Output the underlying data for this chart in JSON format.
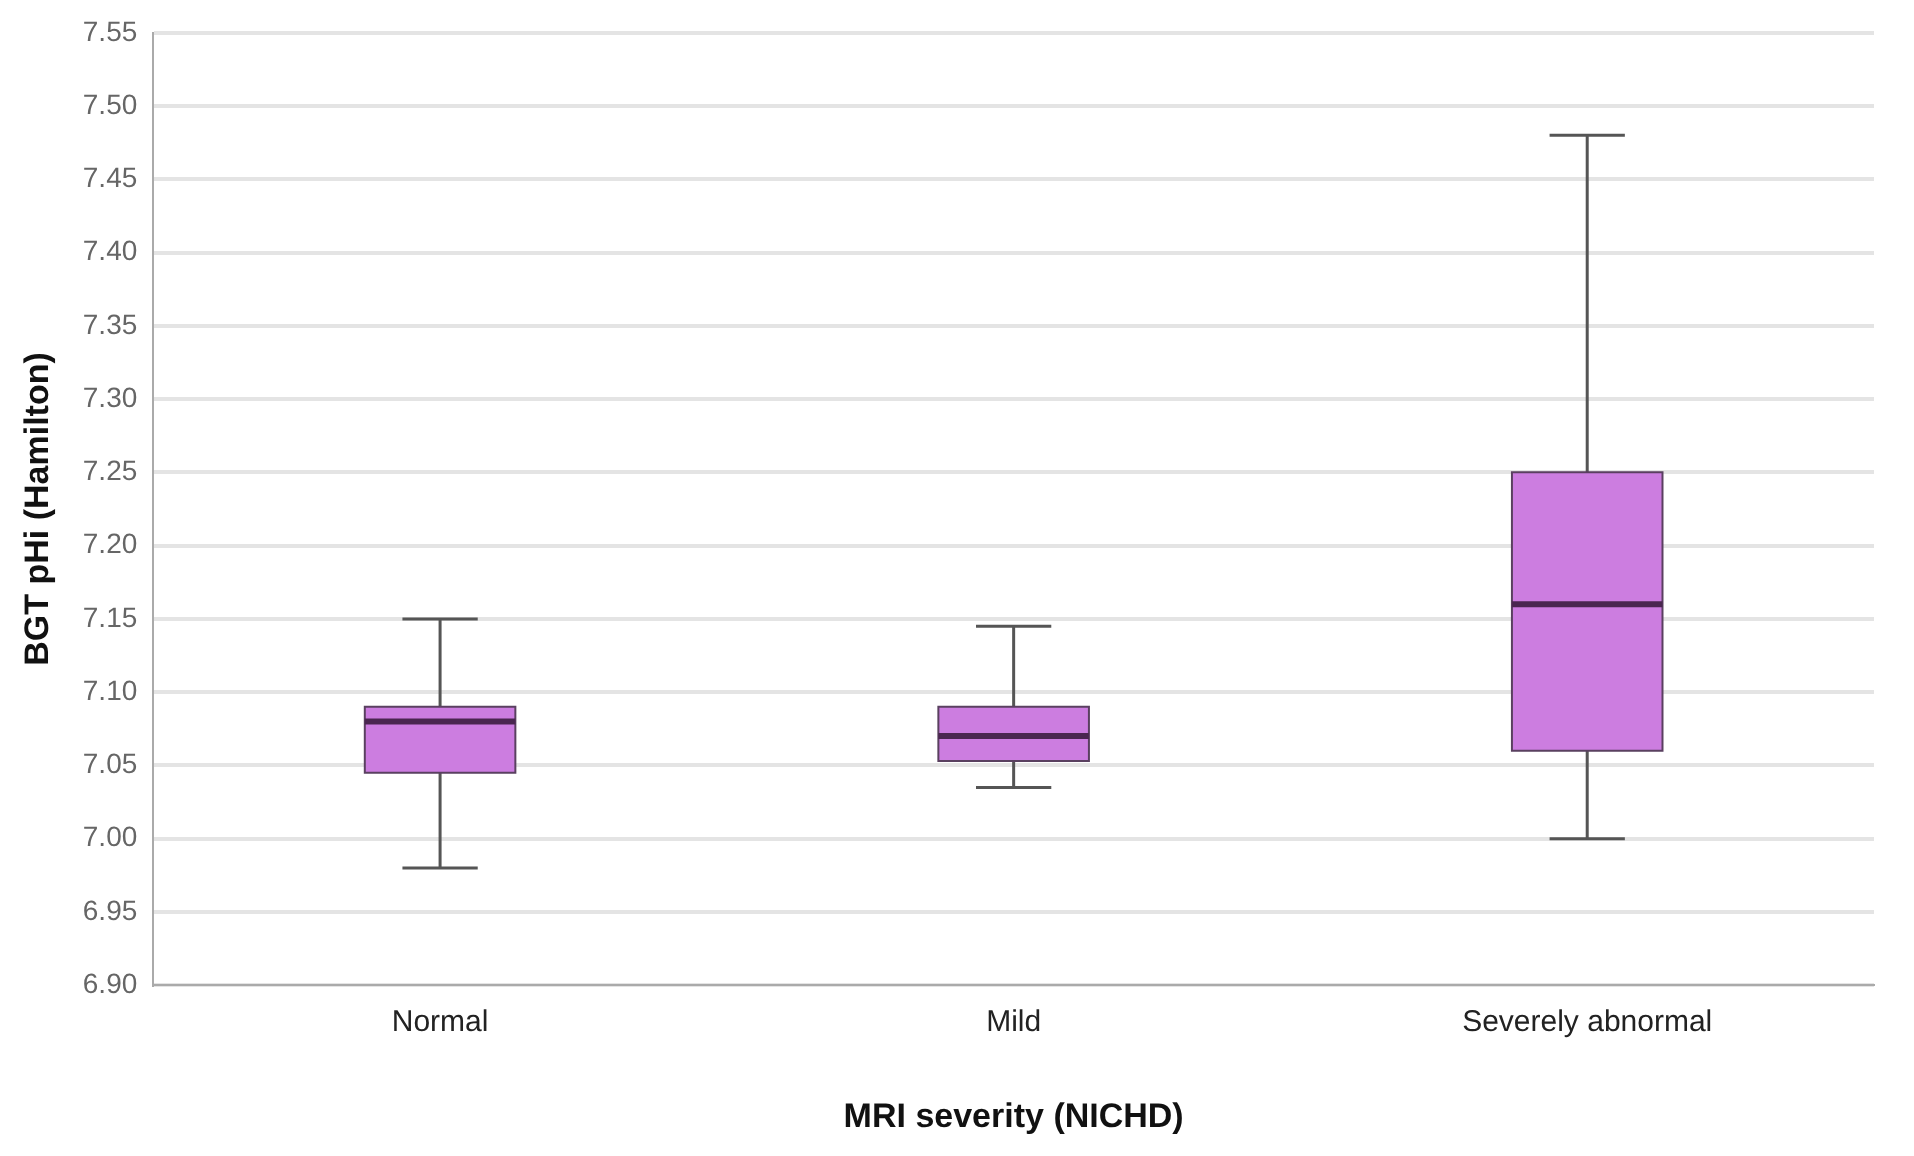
{
  "chart_data": {
    "type": "box",
    "xlabel": "MRI severity (NICHD)",
    "ylabel": "BGT pHi (Hamilton)",
    "categories": [
      "Normal",
      "Mild",
      "Severely abnormal"
    ],
    "color": "#cc7de0",
    "boxes": [
      {
        "low": 6.98,
        "q1": 7.045,
        "median": 7.08,
        "q3": 7.09,
        "high": 7.15
      },
      {
        "low": 7.035,
        "q1": 7.053,
        "median": 7.07,
        "q3": 7.09,
        "high": 7.145
      },
      {
        "low": 7.0,
        "q1": 7.06,
        "median": 7.16,
        "q3": 7.25,
        "high": 7.48
      }
    ],
    "ylim": [
      6.9,
      7.55
    ],
    "yticks": [
      {
        "value": 6.9,
        "label": "6.90"
      },
      {
        "value": 6.95,
        "label": "6.95"
      },
      {
        "value": 7.0,
        "label": "7.00"
      },
      {
        "value": 7.05,
        "label": "7.05"
      },
      {
        "value": 7.1,
        "label": "7.10"
      },
      {
        "value": 7.15,
        "label": "7.15"
      },
      {
        "value": 7.2,
        "label": "7.20"
      },
      {
        "value": 7.25,
        "label": "7.25"
      },
      {
        "value": 7.3,
        "label": "7.30"
      },
      {
        "value": 7.35,
        "label": "7.35"
      },
      {
        "value": 7.4,
        "label": "7.40"
      },
      {
        "value": 7.45,
        "label": "7.45"
      },
      {
        "value": 7.5,
        "label": "7.50"
      },
      {
        "value": 7.55,
        "label": "7.55"
      }
    ],
    "grid": "y"
  }
}
